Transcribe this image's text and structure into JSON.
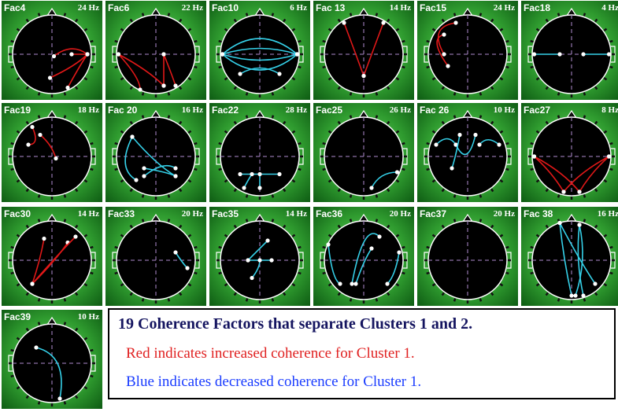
{
  "panels": [
    {
      "label": "Fac4",
      "frequency": "24 Hz"
    },
    {
      "label": "Fac6",
      "frequency": "22 Hz"
    },
    {
      "label": "Fac10",
      "frequency": "6 Hz"
    },
    {
      "label": "Fac 13",
      "frequency": "14 Hz"
    },
    {
      "label": "Fac15",
      "frequency": "24 Hz"
    },
    {
      "label": "Fac18",
      "frequency": "4 Hz"
    },
    {
      "label": "Fac19",
      "frequency": "18 Hz"
    },
    {
      "label": "Fac 20",
      "frequency": "16 Hz"
    },
    {
      "label": "Fac22",
      "frequency": "28 Hz"
    },
    {
      "label": "Fac25",
      "frequency": "26 Hz"
    },
    {
      "label": "Fac 26",
      "frequency": "10 Hz"
    },
    {
      "label": "Fac27",
      "frequency": "8 Hz"
    },
    {
      "label": "Fac30",
      "frequency": "14 Hz"
    },
    {
      "label": "Fac33",
      "frequency": "20 Hz"
    },
    {
      "label": "Fac35",
      "frequency": "14 Hz"
    },
    {
      "label": "Fac36",
      "frequency": "20 Hz"
    },
    {
      "label": "Fac37",
      "frequency": "20 Hz"
    },
    {
      "label": "Fac 38",
      "frequency": "16 Hz"
    },
    {
      "label": "Fac39",
      "frequency": "10 Hz"
    }
  ],
  "caption": {
    "title": "19 Coherence Factors that separate Clusters 1 and 2.",
    "red_line": "Red indicates increased coherence for Cluster 1.",
    "blue_line": "Blue indicates decreased coherence for Cluster 1."
  }
}
